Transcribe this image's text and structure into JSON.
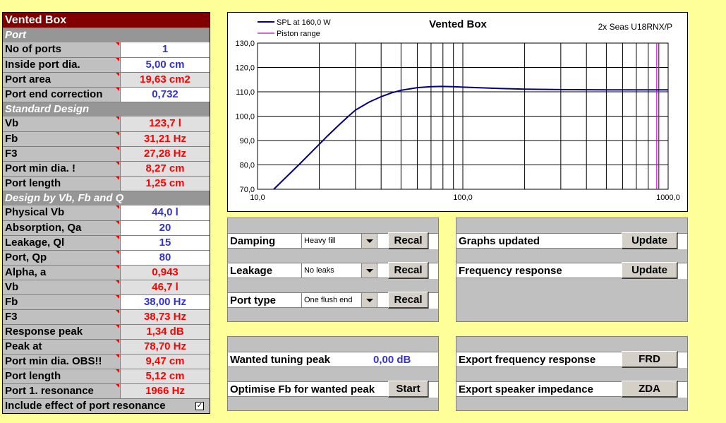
{
  "left": {
    "title": "Vented Box",
    "port_section": "Port",
    "port_rows": [
      {
        "label": "No of ports",
        "value": "1",
        "color": "blue",
        "bg": "white"
      },
      {
        "label": "Inside port dia.",
        "value": "5,00  cm",
        "color": "blue",
        "bg": "white"
      },
      {
        "label": "Port area",
        "value": "19,63  cm2",
        "color": "red",
        "bg": "grey"
      },
      {
        "label": "Port end correction",
        "value": "0,732",
        "color": "blue",
        "bg": "white"
      }
    ],
    "std_section": "Standard Design",
    "std_rows": [
      {
        "label": "Vb",
        "value": "123,7  l",
        "color": "red",
        "bg": "grey"
      },
      {
        "label": "Fb",
        "value": "31,21  Hz",
        "color": "red",
        "bg": "grey"
      },
      {
        "label": "F3",
        "value": "27,28  Hz",
        "color": "red",
        "bg": "grey"
      },
      {
        "label": "Port min dia. !",
        "value": "8,27  cm",
        "color": "red",
        "bg": "grey"
      },
      {
        "label": "Port length",
        "value": "1,25  cm",
        "color": "red",
        "bg": "grey"
      }
    ],
    "design_section": "Design by Vb, Fb and Q",
    "design_rows": [
      {
        "label": "Physical Vb",
        "value": "44,0  l",
        "color": "blue",
        "bg": "white"
      },
      {
        "label": "Absorption, Qa",
        "value": "20",
        "color": "blue",
        "bg": "white"
      },
      {
        "label": "Leakage, Ql",
        "value": "15",
        "color": "blue",
        "bg": "white"
      },
      {
        "label": "Port, Qp",
        "value": "80",
        "color": "blue",
        "bg": "white"
      },
      {
        "label": "Alpha, a",
        "value": "0,943",
        "color": "red",
        "bg": "grey"
      },
      {
        "label": "Vb",
        "value": "46,7  l",
        "color": "red",
        "bg": "grey"
      },
      {
        "label": "Fb",
        "value": "38,00  Hz",
        "color": "blue",
        "bg": "white"
      },
      {
        "label": "F3",
        "value": "38,73  Hz",
        "color": "red",
        "bg": "grey"
      },
      {
        "label": "Response peak",
        "value": "1,34  dB",
        "color": "red",
        "bg": "grey"
      },
      {
        "label": "Peak at",
        "value": "78,70  Hz",
        "color": "red",
        "bg": "grey"
      },
      {
        "label": "Port min dia. OBS!!",
        "value": "9,47  cm",
        "color": "red",
        "bg": "grey"
      },
      {
        "label": "Port length",
        "value": "5,12  cm",
        "color": "red",
        "bg": "grey"
      },
      {
        "label": "Port 1. resonance",
        "value": "1966  Hz",
        "color": "red",
        "bg": "grey"
      }
    ],
    "include_label": "Include effect of port resonance",
    "include_checked": "✓"
  },
  "chart": {
    "legend": {
      "spl": "SPL at 160,0 W",
      "piston": "Piston range"
    },
    "title": "Vented Box",
    "subtitle": "2x Seas U18RNX/P"
  },
  "chart_data": {
    "type": "line",
    "title": "Vented Box",
    "subtitle": "2x Seas U18RNX/P",
    "x_scale": "log",
    "xlim": [
      10,
      1000
    ],
    "ylim": [
      70,
      130
    ],
    "x_tick_labels": [
      "10,0",
      "100,0",
      "1000,0"
    ],
    "y_tick_labels": [
      "70,0",
      "80,0",
      "90,0",
      "100,0",
      "110,0",
      "120,0",
      "130,0"
    ],
    "grid": true,
    "legend_position": "top-left",
    "series": [
      {
        "name": "SPL at 160,0 W",
        "color": "#000080",
        "x": [
          12,
          14,
          16,
          18,
          20,
          22,
          25,
          28,
          30,
          35,
          40,
          45,
          50,
          60,
          70,
          78.7,
          90,
          100,
          150,
          200,
          300,
          500,
          700,
          1000
        ],
        "y": [
          70,
          75.5,
          80.3,
          84.6,
          88.5,
          92,
          96.5,
          100.3,
          102.5,
          105.8,
          108,
          109.6,
          110.6,
          111.7,
          112.1,
          112.2,
          112.1,
          111.9,
          111.4,
          111.1,
          110.9,
          110.8,
          110.8,
          110.8
        ]
      },
      {
        "name": "Piston range",
        "color": "#cc00cc",
        "x": [
          880,
          880,
          900,
          900
        ],
        "y": [
          70,
          130,
          130,
          70
        ]
      }
    ]
  },
  "controls": {
    "damping": {
      "label": "Damping",
      "option": "Heavy fill",
      "button": "Recal"
    },
    "leakage": {
      "label": "Leakage",
      "option": "No leaks",
      "button": "Recal"
    },
    "port_type": {
      "label": "Port type",
      "option": "One flush end",
      "button": "Recal"
    },
    "graphs_updated": {
      "label": "Graphs updated",
      "button": "Update"
    },
    "frequency_response": {
      "label": "Frequency response",
      "button": "Update"
    },
    "wanted_peak": {
      "label": "Wanted tuning peak",
      "value": "0,00  dB"
    },
    "optimise": {
      "label": "Optimise Fb for wanted peak",
      "button": "Start"
    },
    "export_frd": {
      "label": "Export frequency response",
      "button": "FRD"
    },
    "export_zda": {
      "label": "Export speaker impedance",
      "button": "ZDA"
    }
  }
}
